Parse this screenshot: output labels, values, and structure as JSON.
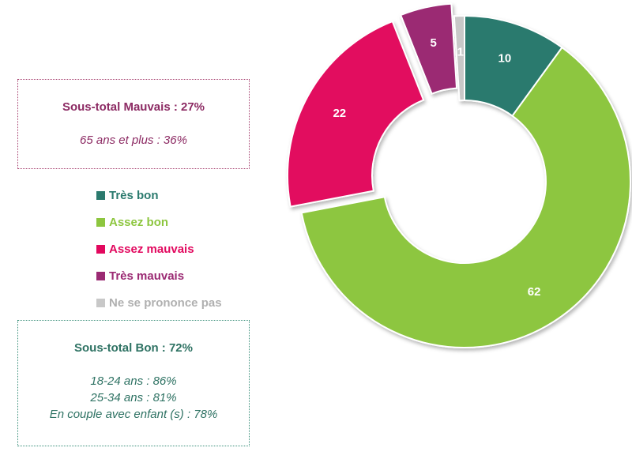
{
  "summary_mauvais": {
    "title": "Sous-total Mauvais :  27%",
    "lines": [
      "65 ans et plus : 36%"
    ]
  },
  "summary_bon": {
    "title": "Sous-total Bon : 72%",
    "lines": [
      "18-24 ans : 86%",
      "25-34 ans : 81%",
      "En couple avec enfant (s) : 78%"
    ]
  },
  "chart_data": {
    "type": "pie",
    "style": "donut",
    "categories": [
      "Très bon",
      "Assez bon",
      "Assez mauvais",
      "Très mauvais",
      "Ne se prononce pas"
    ],
    "values": [
      10,
      62,
      22,
      5,
      1
    ],
    "colors": [
      "#2b7a6e",
      "#8dc63f",
      "#e2085e",
      "#9b2a73",
      "#c8c8c8"
    ],
    "data_labels": [
      "10",
      "62",
      "22",
      "5",
      "1"
    ],
    "exploded": [
      false,
      false,
      true,
      true,
      false
    ],
    "legend_position": "left"
  }
}
